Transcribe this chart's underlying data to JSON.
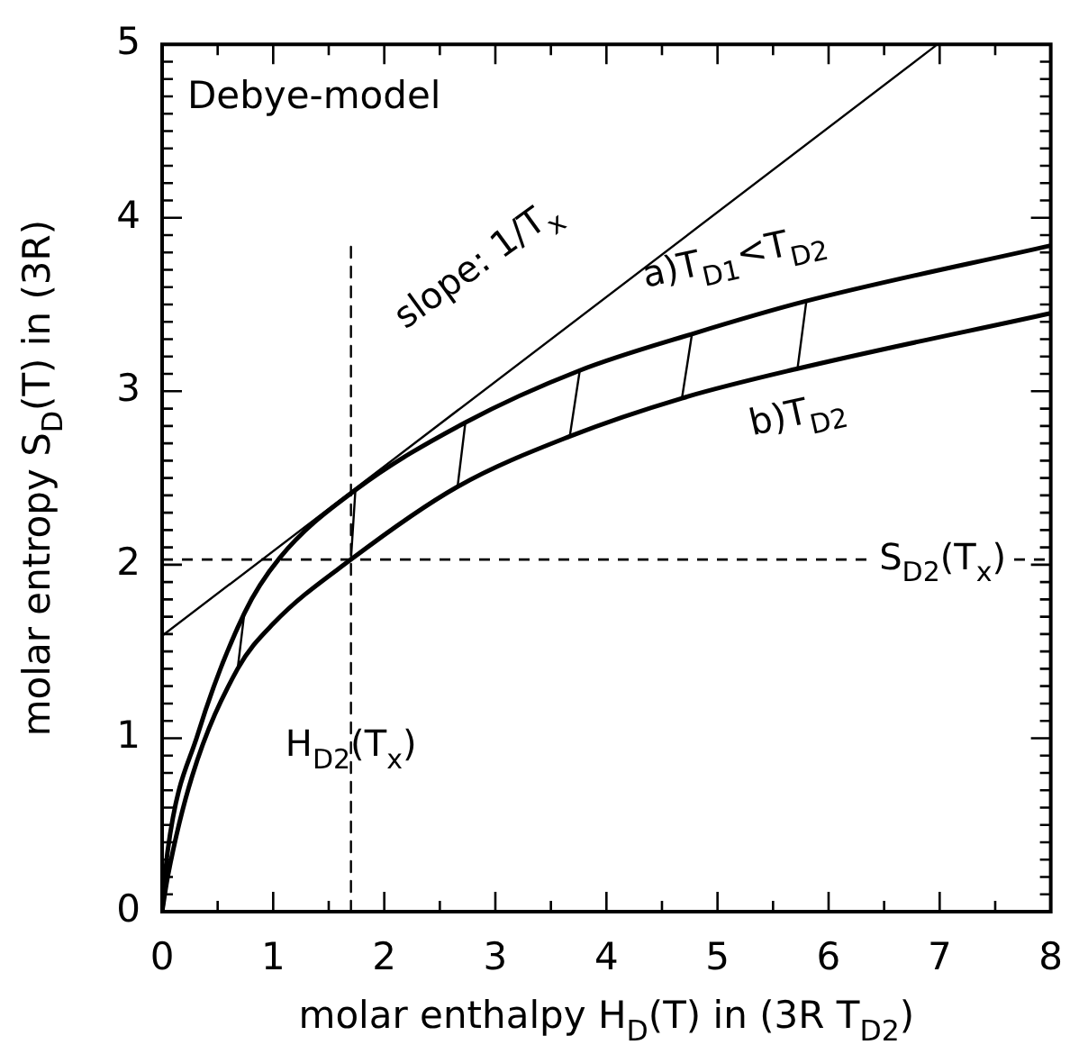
{
  "chart_data": {
    "type": "line",
    "xlabel": "molar enthalpy H$_{D}$(T) in (3R T$_{D2}$)",
    "ylabel": "molar entropy S$_{D}$(T) in (3R)",
    "xlim": [
      0,
      8
    ],
    "ylim": [
      0,
      5
    ],
    "xticks": [
      0,
      {
        "value": 0.5,
        "label": null
      },
      1,
      {
        "value": 1.5,
        "label": null
      },
      2,
      {
        "value": 2.5,
        "label": null
      },
      3,
      {
        "value": 3.5,
        "label": null
      },
      4,
      {
        "value": 4.5,
        "label": null
      },
      5,
      {
        "value": 5.5,
        "label": null
      },
      6,
      {
        "value": 6.5,
        "label": null
      },
      7,
      {
        "value": 7.5,
        "label": null
      },
      8
    ],
    "yticks": [
      0,
      {
        "value": 0.1,
        "label": null
      },
      {
        "value": 0.2,
        "label": null
      },
      {
        "value": 0.3,
        "label": null
      },
      {
        "value": 0.4,
        "label": null
      },
      {
        "value": 0.5,
        "label": null
      },
      {
        "value": 0.6,
        "label": null
      },
      {
        "value": 0.7,
        "label": null
      },
      {
        "value": 0.8,
        "label": null
      },
      {
        "value": 0.9,
        "label": null
      },
      1,
      {
        "value": 1.1,
        "label": null
      },
      {
        "value": 1.2,
        "label": null
      },
      {
        "value": 1.3,
        "label": null
      },
      {
        "value": 1.4,
        "label": null
      },
      {
        "value": 1.5,
        "label": null
      },
      {
        "value": 1.6,
        "label": null
      },
      {
        "value": 1.7,
        "label": null
      },
      {
        "value": 1.8,
        "label": null
      },
      {
        "value": 1.9,
        "label": null
      },
      2,
      {
        "value": 2.1,
        "label": null
      },
      {
        "value": 2.2,
        "label": null
      },
      {
        "value": 2.3,
        "label": null
      },
      {
        "value": 2.4,
        "label": null
      },
      {
        "value": 2.5,
        "label": null
      },
      {
        "value": 2.6,
        "label": null
      },
      {
        "value": 2.7,
        "label": null
      },
      {
        "value": 2.8,
        "label": null
      },
      {
        "value": 2.9,
        "label": null
      },
      3,
      {
        "value": 3.1,
        "label": null
      },
      {
        "value": 3.2,
        "label": null
      },
      {
        "value": 3.3,
        "label": null
      },
      {
        "value": 3.4,
        "label": null
      },
      {
        "value": 3.5,
        "label": null
      },
      {
        "value": 3.6,
        "label": null
      },
      {
        "value": 3.7,
        "label": null
      },
      {
        "value": 3.8,
        "label": null
      },
      {
        "value": 3.9,
        "label": null
      },
      4,
      {
        "value": 4.1,
        "label": null
      },
      {
        "value": 4.2,
        "label": null
      },
      {
        "value": 4.3,
        "label": null
      },
      {
        "value": 4.4,
        "label": null
      },
      {
        "value": 4.5,
        "label": null
      },
      {
        "value": 4.6,
        "label": null
      },
      {
        "value": 4.7,
        "label": null
      },
      {
        "value": 4.8,
        "label": null
      },
      {
        "value": 4.9,
        "label": null
      },
      5
    ],
    "grid": false,
    "legend": false,
    "marker": "none",
    "series": [
      {
        "name": "a)T$_{D1}$<T$_{D2}$",
        "color": "#000000",
        "x": [
          0,
          0.05,
          0.32,
          0.74,
          1.06,
          1.74,
          2.73,
          3.76,
          4.77,
          5.8,
          8
        ],
        "values": [
          0,
          0.35,
          1.02,
          1.72,
          2.04,
          2.43,
          2.82,
          3.12,
          3.33,
          3.52,
          3.84
        ]
      },
      {
        "name": "b)T$_{D2}$",
        "color": "#000000",
        "x": [
          0,
          0.05,
          0.27,
          0.68,
          1.0,
          1.7,
          2.66,
          3.67,
          4.68,
          5.72,
          8
        ],
        "values": [
          0,
          0.2,
          0.78,
          1.4,
          1.66,
          2.03,
          2.45,
          2.74,
          2.96,
          3.13,
          3.45
        ]
      },
      {
        "color": "#000000",
        "x": [
          0,
          6.96
        ],
        "values": [
          1.59,
          4.99
        ]
      },
      {
        "color": "#000000",
        "x": [
          0.68,
          0.74
        ],
        "values": [
          1.4,
          1.72
        ]
      },
      {
        "color": "#000000",
        "x": [
          1.7,
          1.74
        ],
        "values": [
          2.03,
          2.43
        ]
      },
      {
        "color": "#000000",
        "x": [
          2.66,
          2.73
        ],
        "values": [
          2.45,
          2.82
        ]
      },
      {
        "color": "#000000",
        "x": [
          3.67,
          3.76
        ],
        "values": [
          2.74,
          3.12
        ]
      },
      {
        "color": "#000000",
        "x": [
          4.68,
          4.77
        ],
        "values": [
          2.96,
          3.33
        ]
      },
      {
        "color": "#000000",
        "x": [
          5.72,
          5.8
        ],
        "values": [
          3.13,
          3.52
        ]
      },
      {
        "color": "#000000",
        "line_style": "dashed",
        "x": [
          1.7,
          1.7
        ],
        "values": [
          0,
          3.85
        ]
      }
    ],
    "ref_lines": [
      {
        "axis": "y",
        "value": 2.03,
        "label": "S$_{D2}$(T$_{x}$)",
        "line_style": "dashed",
        "color": "#000000"
      }
    ],
    "annotations": [
      "Debye-model",
      "slope: 1/T$_{x}$",
      {
        "text": "H$_{D2}$(T$_{x}$)",
        "x": 1.7,
        "y": 0.95
      }
    ]
  }
}
